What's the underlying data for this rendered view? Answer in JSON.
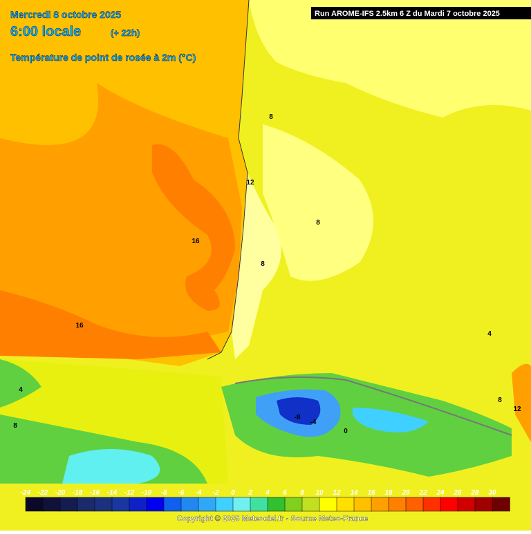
{
  "header": {
    "date": "Mercredi 8 octobre 2025",
    "time": "6:00 locale",
    "lead": "(+ 22h)",
    "parameter": "Température de point de rosée à 2m (°C)",
    "run": "Run AROME-IFS 2.5km 6 Z du Mardi 7 octobre 2025"
  },
  "map": {
    "contour_labels": [
      16,
      16,
      12,
      8,
      8,
      8,
      8,
      4,
      4,
      0,
      -4,
      -8,
      8,
      12
    ]
  },
  "legend": {
    "ticks": [
      -24,
      -22,
      -20,
      -18,
      -16,
      -14,
      -12,
      -10,
      -8,
      -6,
      -4,
      -2,
      0,
      2,
      4,
      6,
      8,
      10,
      12,
      14,
      16,
      18,
      20,
      22,
      24,
      26,
      28,
      30
    ],
    "colors": [
      "#0a0a28",
      "#10123a",
      "#141c50",
      "#1a2a6a",
      "#1c3080",
      "#1a36a0",
      "#1020c8",
      "#0000ee",
      "#1060f0",
      "#2088f0",
      "#30a8f8",
      "#40d0ff",
      "#70f0f0",
      "#40e0a0",
      "#30c030",
      "#80d020",
      "#c0e020",
      "#ffff00",
      "#ffe000",
      "#ffc000",
      "#ffa000",
      "#ff8000",
      "#ff6000",
      "#ff3000",
      "#ff0000",
      "#d00000",
      "#a00000",
      "#700000"
    ]
  },
  "footer": {
    "copyright": "Copyright © 2025 Meteociel.fr - Source Meteo-France"
  }
}
